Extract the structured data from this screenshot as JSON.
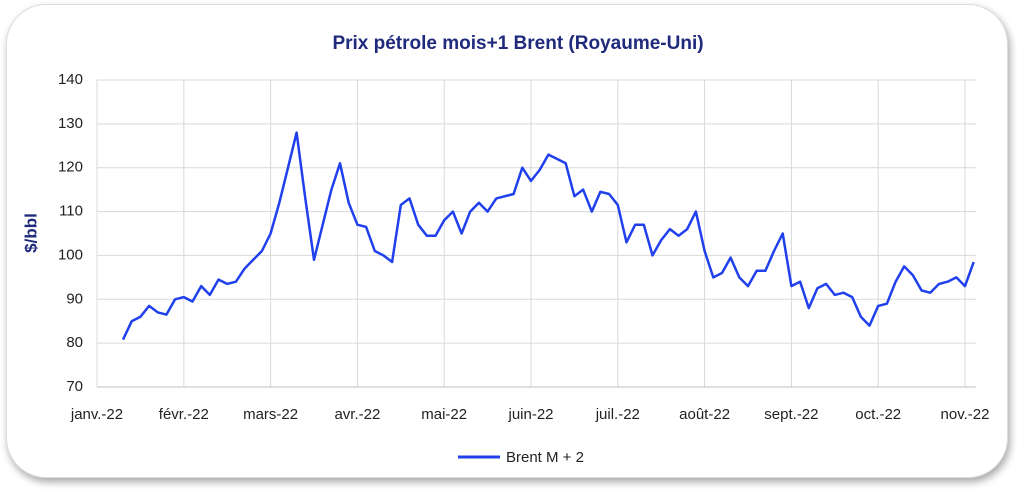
{
  "chart_data": {
    "type": "line",
    "title": "Prix pétrole mois+1 Brent (Royaume-Uni)",
    "y_label": "$/bbl",
    "categories": [
      "janv.-22",
      null,
      null,
      null,
      null,
      null,
      null,
      null,
      null,
      null,
      "févr.-22",
      null,
      null,
      null,
      null,
      null,
      null,
      null,
      null,
      null,
      "mars-22",
      null,
      null,
      null,
      null,
      null,
      null,
      null,
      null,
      null,
      "avr.-22",
      null,
      null,
      null,
      null,
      null,
      null,
      null,
      null,
      null,
      "mai-22",
      null,
      null,
      null,
      null,
      null,
      null,
      null,
      null,
      null,
      "juin-22",
      null,
      null,
      null,
      null,
      null,
      null,
      null,
      null,
      null,
      "juil.-22",
      null,
      null,
      null,
      null,
      null,
      null,
      null,
      null,
      null,
      "août-22",
      null,
      null,
      null,
      null,
      null,
      null,
      null,
      null,
      null,
      "sept.-22",
      null,
      null,
      null,
      null,
      null,
      null,
      null,
      null,
      null,
      "oct.-22",
      null,
      null,
      null,
      null,
      null,
      null,
      null,
      null,
      null,
      "nov.-22",
      null
    ],
    "series": [
      {
        "name": "Brent M + 2",
        "color": "#2040ee",
        "values": [
          null,
          null,
          null,
          80.8,
          85,
          86,
          88.5,
          87,
          86.5,
          90,
          90.5,
          89.5,
          93,
          91,
          94.5,
          93.5,
          94,
          97,
          99,
          101,
          105,
          112,
          120,
          128,
          113,
          99,
          107,
          115,
          121,
          112,
          107,
          106.5,
          101,
          100,
          98.5,
          111.5,
          113,
          107,
          104.5,
          104.5,
          108,
          110,
          105,
          110,
          112,
          110,
          113,
          113.5,
          114,
          120,
          117,
          119.5,
          123,
          122,
          121,
          113.5,
          115,
          110,
          114.5,
          114,
          111.5,
          103,
          107,
          107,
          100,
          103.5,
          106,
          104.5,
          106,
          110,
          101,
          95,
          96,
          99.5,
          95,
          93,
          96.5,
          96.5,
          101,
          105,
          93,
          94,
          88,
          92.5,
          93.5,
          91,
          91.5,
          90.5,
          86,
          84,
          88.5,
          89,
          94,
          97.5,
          95.5,
          92,
          91.5,
          93.5,
          94,
          95,
          93,
          98.5
        ]
      }
    ],
    "ylim": [
      70,
      140
    ],
    "yticks": [
      70,
      80,
      90,
      100,
      110,
      120,
      130,
      140
    ],
    "grid": true,
    "legend": "bottom"
  }
}
